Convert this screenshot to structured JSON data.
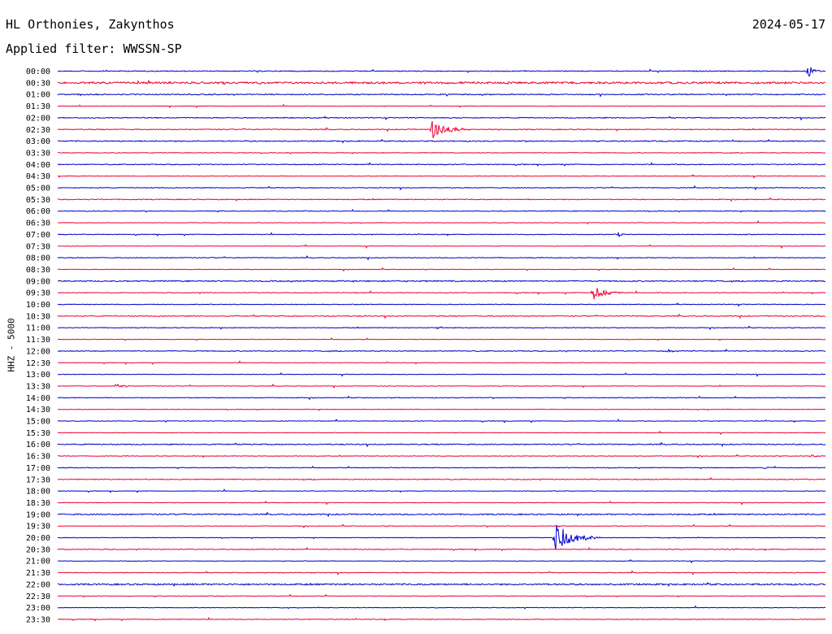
{
  "header": {
    "station": "HL Orthonies, Zakynthos",
    "date": "2024-05-17",
    "filter": "Applied filter: WWSSN-SP"
  },
  "chart_data": {
    "type": "line",
    "title": "HL Orthonies, Zakynthos",
    "subtitle": "Applied filter: WWSSN-SP",
    "ylabel": "HHZ - 5000",
    "xlabel": "",
    "grid": false,
    "colors": [
      "#0000cc",
      "#ee0033"
    ],
    "rows": [
      "00:00",
      "00:30",
      "01:00",
      "01:30",
      "02:00",
      "02:30",
      "03:00",
      "03:30",
      "04:00",
      "04:30",
      "05:00",
      "05:30",
      "06:00",
      "06:30",
      "07:00",
      "07:30",
      "08:00",
      "08:30",
      "09:00",
      "09:30",
      "10:00",
      "10:30",
      "11:00",
      "11:30",
      "12:00",
      "12:30",
      "13:00",
      "13:30",
      "14:00",
      "14:30",
      "15:00",
      "15:30",
      "16:00",
      "16:30",
      "17:00",
      "17:30",
      "18:00",
      "18:30",
      "19:00",
      "19:30",
      "20:00",
      "20:30",
      "21:00",
      "21:30",
      "22:00",
      "22:30",
      "23:00",
      "23:30"
    ],
    "noise_level": [
      0.5,
      1.2,
      0.6,
      0.3,
      0.5,
      0.5,
      0.6,
      0.4,
      0.5,
      0.3,
      0.4,
      0.5,
      0.4,
      0.3,
      0.4,
      0.3,
      0.4,
      0.3,
      0.7,
      0.4,
      0.4,
      0.5,
      0.4,
      0.3,
      0.5,
      0.3,
      0.3,
      0.3,
      0.4,
      0.3,
      0.3,
      0.3,
      0.6,
      0.3,
      0.4,
      0.5,
      0.3,
      0.3,
      0.7,
      0.3,
      0.3,
      0.5,
      0.3,
      0.4,
      0.9,
      0.3,
      0.3,
      0.4
    ],
    "events": [
      {
        "row": 0,
        "minute": 29.3,
        "amplitude": 9,
        "duration_min": 0.6
      },
      {
        "row": 5,
        "minute": 14.6,
        "amplitude": 12,
        "duration_min": 1.5
      },
      {
        "row": 19,
        "minute": 20.9,
        "amplitude": 9,
        "duration_min": 1.2
      },
      {
        "row": 27,
        "minute": 2.3,
        "amplitude": 6,
        "duration_min": 0.7
      },
      {
        "row": 40,
        "minute": 19.4,
        "amplitude": 20,
        "duration_min": 1.8
      },
      {
        "row": 33,
        "minute": 29.4,
        "amplitude": 3,
        "duration_min": 0.5
      },
      {
        "row": 14,
        "minute": 21.9,
        "amplitude": 3,
        "duration_min": 0.5
      },
      {
        "row": 24,
        "minute": 23.8,
        "amplitude": 2,
        "duration_min": 0.8
      },
      {
        "row": 22,
        "minute": 14.8,
        "amplitude": 2,
        "duration_min": 0.4
      },
      {
        "row": 34,
        "minute": 27.6,
        "amplitude": 2,
        "duration_min": 0.5
      }
    ]
  }
}
